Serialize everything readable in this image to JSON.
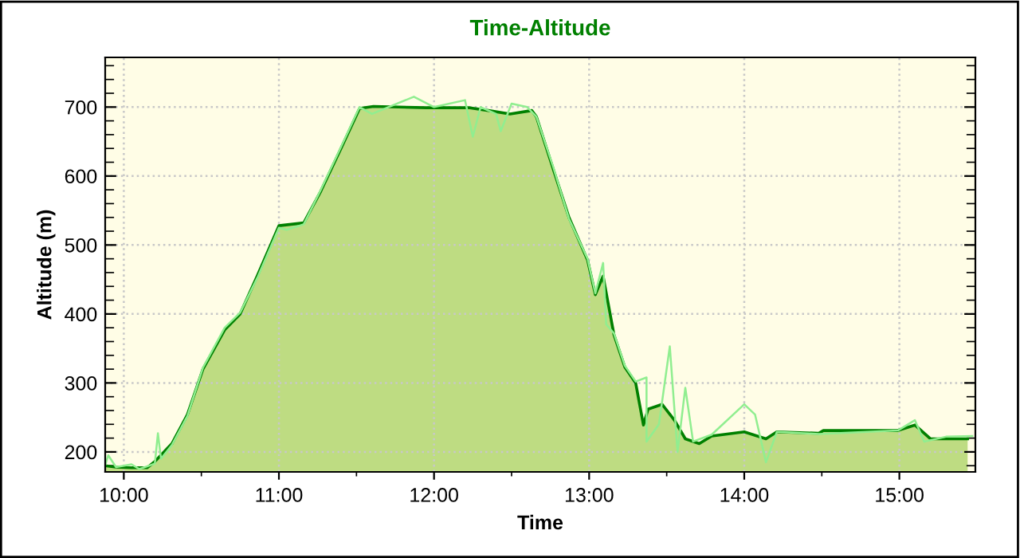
{
  "chart_data": {
    "type": "area",
    "title": "Time-Altitude",
    "xlabel": "Time",
    "ylabel": "Altitude (m)",
    "xlim": [
      9.88,
      15.49
    ],
    "ylim": [
      171,
      772
    ],
    "xticks": [
      {
        "value": 10,
        "label": "10:00"
      },
      {
        "value": 10.5,
        "label": null
      },
      {
        "value": 11,
        "label": "11:00"
      },
      {
        "value": 11.5,
        "label": null
      },
      {
        "value": 12,
        "label": "12:00"
      },
      {
        "value": 12.5,
        "label": null
      },
      {
        "value": 13,
        "label": "13:00"
      },
      {
        "value": 13.5,
        "label": null
      },
      {
        "value": 14,
        "label": "14:00"
      },
      {
        "value": 14.5,
        "label": null
      },
      {
        "value": 15,
        "label": "15:00"
      }
    ],
    "yticks": [
      {
        "value": 180,
        "label": null
      },
      200,
      {
        "value": 220,
        "label": null
      },
      {
        "value": 240,
        "label": null
      },
      {
        "value": 260,
        "label": null
      },
      {
        "value": 280,
        "label": null
      },
      300,
      {
        "value": 320,
        "label": null
      },
      {
        "value": 340,
        "label": null
      },
      {
        "value": 360,
        "label": null
      },
      {
        "value": 380,
        "label": null
      },
      400,
      {
        "value": 420,
        "label": null
      },
      {
        "value": 440,
        "label": null
      },
      {
        "value": 460,
        "label": null
      },
      {
        "value": 480,
        "label": null
      },
      500,
      {
        "value": 520,
        "label": null
      },
      {
        "value": 540,
        "label": null
      },
      {
        "value": 560,
        "label": null
      },
      {
        "value": 580,
        "label": null
      },
      600,
      {
        "value": 620,
        "label": null
      },
      {
        "value": 640,
        "label": null
      },
      {
        "value": 660,
        "label": null
      },
      {
        "value": 680,
        "label": null
      },
      700,
      {
        "value": 720,
        "label": null
      },
      {
        "value": 740,
        "label": null
      },
      {
        "value": 760,
        "label": null
      }
    ],
    "grid": true,
    "series": [
      {
        "color": "#008000",
        "x": [
          9.88,
          9.95,
          10.05,
          10.15,
          10.2,
          10.31,
          10.41,
          10.51,
          10.65,
          10.75,
          10.86,
          11.0,
          11.16,
          11.27,
          11.4,
          11.52,
          11.61,
          11.95,
          12.23,
          12.35,
          12.49,
          12.63,
          12.66,
          12.77,
          12.87,
          12.99,
          13.04,
          13.09,
          13.16,
          13.23,
          13.3,
          13.35,
          13.38,
          13.47,
          13.55,
          13.62,
          13.71,
          13.79,
          14.0,
          14.14,
          14.21,
          14.48,
          14.51,
          14.99,
          15.1,
          15.2,
          15.44
        ],
        "values": [
          180,
          178,
          177,
          177,
          186,
          212,
          254,
          320,
          377,
          400,
          455,
          528,
          532,
          578,
          640,
          698,
          701,
          699,
          699,
          695,
          690,
          695,
          686,
          609,
          540,
          478,
          428,
          455,
          370,
          323,
          300,
          239,
          262,
          269,
          246,
          219,
          212,
          223,
          229,
          219,
          229,
          227,
          231,
          231,
          239,
          219,
          219
        ]
      },
      {
        "type": "line",
        "color": "#90ee90",
        "x": [
          9.88,
          9.9,
          9.95,
          10.05,
          10.1,
          10.2,
          10.22,
          10.24,
          10.31,
          10.41,
          10.51,
          10.65,
          10.75,
          10.86,
          11.0,
          11.05,
          11.16,
          11.27,
          11.4,
          11.52,
          11.6,
          11.87,
          12.0,
          12.2,
          12.25,
          12.3,
          12.4,
          12.43,
          12.5,
          12.6,
          12.66,
          12.77,
          12.87,
          12.99,
          13.04,
          13.09,
          13.11,
          13.16,
          13.23,
          13.3,
          13.37,
          13.37,
          13.45,
          13.52,
          13.57,
          13.62,
          13.67,
          13.79,
          14.0,
          14.07,
          14.14,
          14.21,
          14.48,
          14.99,
          15.1,
          15.16,
          15.3,
          15.47
        ],
        "values": [
          181,
          195,
          178,
          182,
          175,
          183,
          227,
          190,
          210,
          252,
          322,
          380,
          402,
          452,
          525,
          522,
          530,
          580,
          642,
          700,
          690,
          715,
          700,
          710,
          657,
          700,
          690,
          665,
          705,
          700,
          686,
          612,
          538,
          480,
          430,
          474,
          385,
          372,
          325,
          302,
          308,
          215,
          240,
          353,
          200,
          293,
          215,
          225,
          269,
          254,
          185,
          229,
          226,
          231,
          246,
          215,
          222,
          223
        ]
      }
    ]
  }
}
